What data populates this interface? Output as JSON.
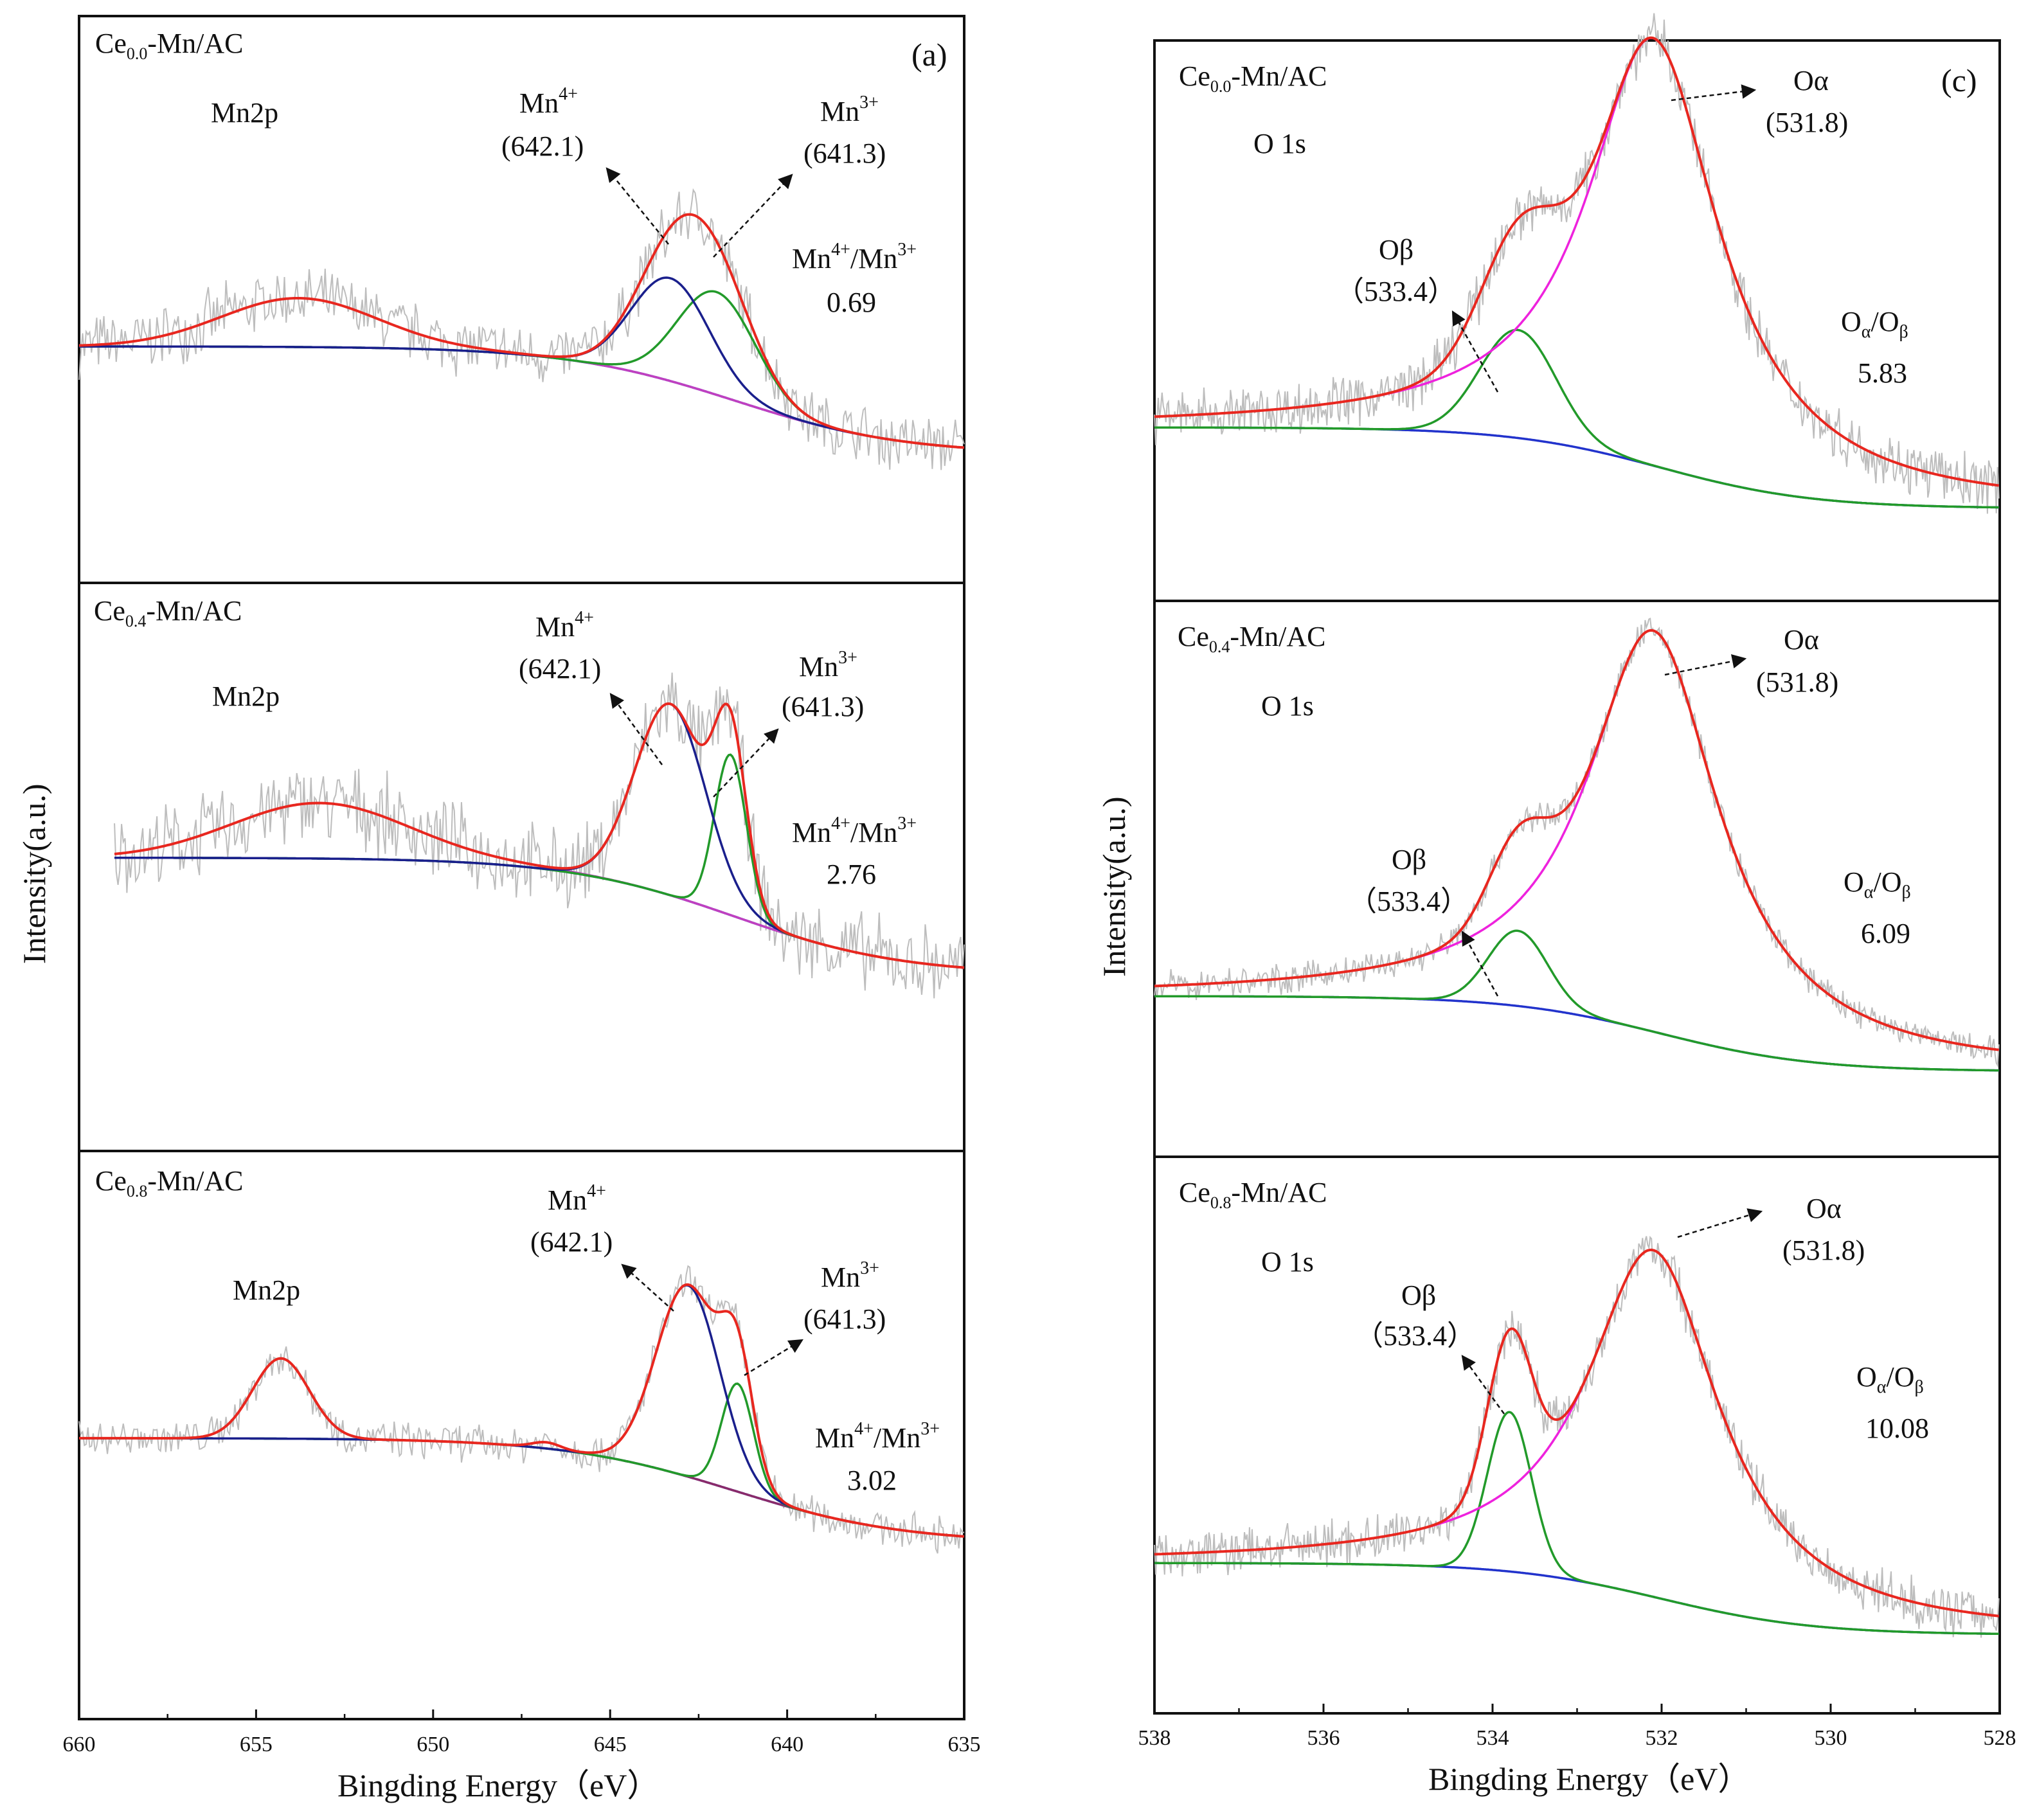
{
  "chart_data": [
    {
      "type": "line",
      "panel": "(a)",
      "xlabel": "Bingding Energy（eV）",
      "ylabel": "Intensity(a.u.)",
      "xlim": [
        660,
        635
      ],
      "xticks": [
        "660",
        "655",
        "650",
        "645",
        "640",
        "635"
      ],
      "colors": {
        "raw": "#bdbdbd",
        "fit": "#e8271f",
        "mn4": "#1a1f8c",
        "mn3": "#229a2a",
        "bg": "#2233cc",
        "sat": "#c040c0",
        "sat2": "#8a2b6a"
      },
      "subplots": [
        {
          "sample": {
            "prefix": "Ce",
            "sub": "0.0",
            "suffix": "-Mn/AC"
          },
          "region": "Mn2p",
          "mn4": {
            "name": "Mn",
            "sup": "4+",
            "be": "(642.1)"
          },
          "mn3": {
            "name": "Mn",
            "sup": "3+",
            "be": "(641.3)"
          },
          "ratio": {
            "name1": "Mn",
            "sup1": "4+",
            "sep": "/",
            "name2": "Mn",
            "sup2": "3+",
            "value": "0.69"
          }
        },
        {
          "sample": {
            "prefix": "Ce",
            "sub": "0.4",
            "suffix": "-Mn/AC"
          },
          "region": "Mn2p",
          "mn4": {
            "name": "Mn",
            "sup": "4+",
            "be": "(642.1)"
          },
          "mn3": {
            "name": "Mn",
            "sup": "3+",
            "be": "(641.3)"
          },
          "ratio": {
            "name1": "Mn",
            "sup1": "4+",
            "sep": "/",
            "name2": "Mn",
            "sup2": "3+",
            "value": "2.76"
          }
        },
        {
          "sample": {
            "prefix": "Ce",
            "sub": "0.8",
            "suffix": "-Mn/AC"
          },
          "region": "Mn2p",
          "mn4": {
            "name": "Mn",
            "sup": "4+",
            "be": "(642.1)"
          },
          "mn3": {
            "name": "Mn",
            "sup": "3+",
            "be": "(641.3)"
          },
          "ratio": {
            "name1": "Mn",
            "sup1": "4+",
            "sep": "/",
            "name2": "Mn",
            "sup2": "3+",
            "value": "3.02"
          }
        }
      ]
    },
    {
      "type": "line",
      "panel": "(c)",
      "xlabel": "Bingding Energy（eV）",
      "ylabel": "Intensity(a.u.)",
      "xlim": [
        538,
        528
      ],
      "xticks": [
        "538",
        "536",
        "534",
        "532",
        "530",
        "528"
      ],
      "colors": {
        "raw": "#bdbdbd",
        "fit": "#e8271f",
        "oa": "#ee22dd",
        "ob": "#229a2a",
        "bg": "#2233cc"
      },
      "subplots": [
        {
          "sample": {
            "prefix": "Ce",
            "sub": "0.0",
            "suffix": "-Mn/AC"
          },
          "region": "O 1s",
          "oa": {
            "name": "Oα",
            "be": "(531.8)"
          },
          "ob": {
            "name": "Oβ",
            "be": "（533.4）"
          },
          "ratio": {
            "a": "O",
            "asub": "α",
            "sep": "/",
            "b": "O",
            "bsub": "β",
            "value": "5.83"
          }
        },
        {
          "sample": {
            "prefix": "Ce",
            "sub": "0.4",
            "suffix": "-Mn/AC"
          },
          "region": "O 1s",
          "oa": {
            "name": "Oα",
            "be": "(531.8)"
          },
          "ob": {
            "name": "Oβ",
            "be": "（533.4）"
          },
          "ratio": {
            "a": "O",
            "asub": "α",
            "sep": "/",
            "b": "O",
            "bsub": "β",
            "value": "6.09"
          }
        },
        {
          "sample": {
            "prefix": "Ce",
            "sub": "0.8",
            "suffix": "-Mn/AC"
          },
          "region": "O 1s",
          "oa": {
            "name": "Oα",
            "be": "(531.8)"
          },
          "ob": {
            "name": "Oβ",
            "be": "（533.4）"
          },
          "ratio": {
            "a": "O",
            "asub": "α",
            "sep": "/",
            "b": "O",
            "bsub": "β",
            "value": "10.08"
          }
        }
      ]
    }
  ]
}
